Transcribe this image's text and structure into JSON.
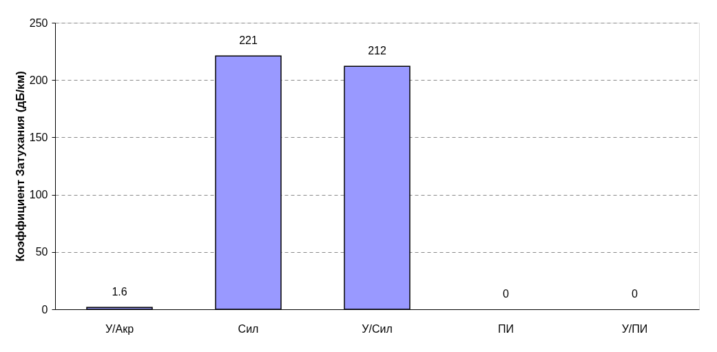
{
  "chart_data": {
    "type": "bar",
    "ylabel": "Коэффициент Затухания (дБ/км)",
    "categories": [
      "У/Акр",
      "Сил",
      "У/Сил",
      "ПИ",
      "У/ПИ"
    ],
    "values": [
      1.6,
      221,
      212,
      0,
      0
    ],
    "color": "#9999ff",
    "ylim": [
      0,
      250
    ],
    "yticks": [
      0,
      50,
      100,
      150,
      200,
      250
    ],
    "grid": "y",
    "data_labels": true
  }
}
